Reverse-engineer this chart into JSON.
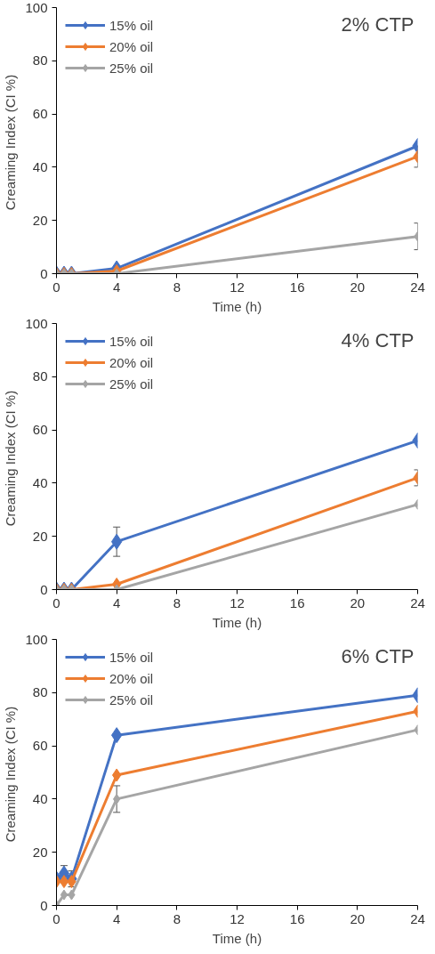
{
  "chart_data": [
    {
      "type": "line",
      "title": "2% CTP",
      "xlabel": "Time (h)",
      "ylabel": "Creaming Index  (CI %)",
      "x": [
        0,
        0.5,
        1,
        4,
        24
      ],
      "xlim": [
        0,
        24
      ],
      "xticks": [
        0,
        4,
        8,
        12,
        16,
        20,
        24
      ],
      "ylim": [
        0,
        100
      ],
      "yticks": [
        0,
        20,
        40,
        60,
        80,
        100
      ],
      "grid": false,
      "legend": "top left",
      "marker": "diamond",
      "line_style": "solid",
      "series": [
        {
          "name": "15% oil",
          "color": "#4472c4",
          "values": [
            0,
            0,
            0,
            2,
            48
          ]
        },
        {
          "name": "20% oil",
          "color": "#ed7d31",
          "values": [
            0,
            0,
            0,
            1,
            44
          ],
          "errors": [
            null,
            null,
            null,
            null,
            4
          ]
        },
        {
          "name": "25% oil",
          "color": "#a5a5a5",
          "values": [
            0,
            0,
            0,
            0,
            14
          ],
          "errors": [
            null,
            null,
            null,
            null,
            5
          ]
        }
      ]
    },
    {
      "type": "line",
      "title": "4% CTP",
      "xlabel": "Time (h)",
      "ylabel": "Creaming Index  (CI %)",
      "x": [
        0,
        0.5,
        1,
        4,
        24
      ],
      "xlim": [
        0,
        24
      ],
      "xticks": [
        0,
        4,
        8,
        12,
        16,
        20,
        24
      ],
      "ylim": [
        0,
        100
      ],
      "yticks": [
        0,
        20,
        40,
        60,
        80,
        100
      ],
      "grid": false,
      "legend": "top left",
      "marker": "diamond",
      "line_style": "solid",
      "series": [
        {
          "name": "15% oil",
          "color": "#4472c4",
          "values": [
            0,
            0,
            0,
            18,
            56
          ],
          "errors": [
            null,
            null,
            null,
            5.5,
            null
          ]
        },
        {
          "name": "20% oil",
          "color": "#ed7d31",
          "values": [
            0,
            0,
            0,
            2,
            42
          ],
          "errors": [
            null,
            null,
            null,
            null,
            3
          ]
        },
        {
          "name": "25% oil",
          "color": "#a5a5a5",
          "values": [
            0,
            0,
            0,
            0,
            32
          ]
        }
      ]
    },
    {
      "type": "line",
      "title": "6% CTP",
      "xlabel": "Time (h)",
      "ylabel": "Creaming Index  (CI %)",
      "x": [
        0,
        0.5,
        1,
        4,
        24
      ],
      "xlim": [
        0,
        24
      ],
      "xticks": [
        0,
        4,
        8,
        12,
        16,
        20,
        24
      ],
      "ylim": [
        0,
        100
      ],
      "yticks": [
        0,
        20,
        40,
        60,
        80,
        100
      ],
      "grid": false,
      "legend": "top left",
      "marker": "diamond",
      "line_style": "solid",
      "series": [
        {
          "name": "15% oil",
          "color": "#4472c4",
          "values": [
            10,
            12,
            10,
            64,
            79
          ],
          "errors": [
            null,
            3,
            3,
            null,
            null
          ]
        },
        {
          "name": "20% oil",
          "color": "#ed7d31",
          "values": [
            9,
            9,
            9,
            49,
            73
          ]
        },
        {
          "name": "25% oil",
          "color": "#a5a5a5",
          "values": [
            0,
            4,
            4,
            40,
            66
          ],
          "errors": [
            null,
            null,
            null,
            5,
            null
          ]
        }
      ]
    }
  ]
}
